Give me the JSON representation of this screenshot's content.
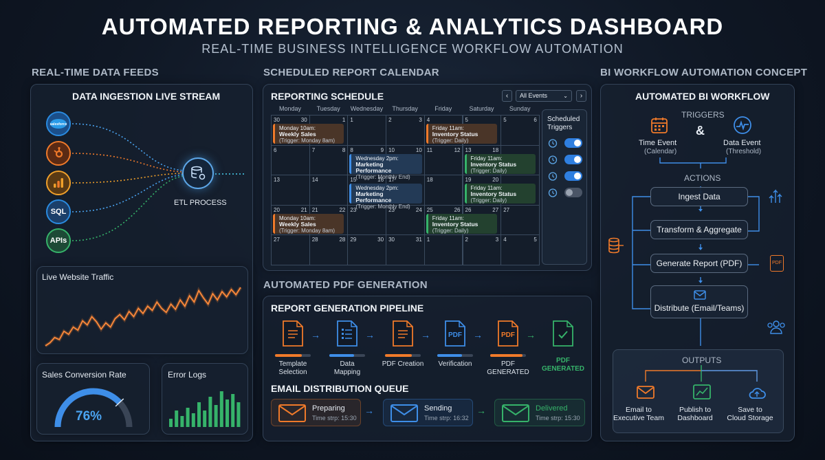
{
  "header": {
    "title": "AUTOMATED REPORTING & ANALYTICS DASHBOARD",
    "subtitle": "REAL-TIME BUSINESS INTELLIGENCE WORKFLOW AUTOMATION"
  },
  "sections": {
    "feeds": "REAL-TIME DATA FEEDS",
    "calendar": "SCHEDULED REPORT CALENDAR",
    "workflow": "BI WORKFLOW AUTOMATION CONCEPT",
    "pdf": "AUTOMATED PDF GENERATION"
  },
  "ingestion": {
    "title": "DATA INGESTION LIVE STREAM",
    "sources": [
      "salesforce",
      "hubspot",
      "analytics",
      "SQL",
      "APIs"
    ],
    "etl_label": "ETL PROCESS",
    "colors": [
      "#2a8be0",
      "#f07a2a",
      "#f0a02a",
      "#2a8be0",
      "#36b36a"
    ]
  },
  "traffic": {
    "title": "Live Website Traffic",
    "values": [
      22,
      25,
      30,
      28,
      36,
      33,
      40,
      37,
      46,
      42,
      50,
      45,
      38,
      44,
      40,
      48,
      52,
      47,
      55,
      50,
      58,
      53,
      60,
      56,
      64,
      58,
      54,
      62,
      57,
      66,
      60,
      70,
      64,
      75,
      68,
      62,
      72,
      66,
      74,
      69,
      76,
      71,
      78
    ]
  },
  "conversion": {
    "title": "Sales Conversion Rate",
    "value": "76%",
    "fraction": 0.76
  },
  "errors": {
    "title": "Error Logs",
    "bars": [
      3,
      6,
      4,
      7,
      5,
      9,
      6,
      11,
      8,
      13,
      10,
      12,
      9
    ]
  },
  "calendar": {
    "title": "REPORTING SCHEDULE",
    "filter": "All Events",
    "prev_icon": "chevron-left-icon",
    "next_icon": "chevron-right-icon",
    "days": [
      "Monday",
      "Tuesday",
      "Wednesday",
      "Thursday",
      "Friday",
      "Saturday",
      "Sunday"
    ],
    "weeks": [
      [
        [
          "30",
          "30"
        ],
        [
          "",
          "1"
        ],
        [
          "1",
          ""
        ],
        [
          "2",
          "3"
        ],
        [
          "4",
          ""
        ],
        [
          "5",
          ""
        ],
        [
          "5",
          "6"
        ]
      ],
      [
        [
          "6",
          ""
        ],
        [
          "7",
          "8"
        ],
        [
          "8",
          "9"
        ],
        [
          "10",
          "10"
        ],
        [
          "11",
          "12"
        ],
        [
          "13",
          "18"
        ],
        [
          "",
          ""
        ]
      ],
      [
        [
          "13",
          ""
        ],
        [
          "14",
          ""
        ],
        [
          "15",
          "16"
        ],
        [
          "17",
          ""
        ],
        [
          "18",
          ""
        ],
        [
          "19",
          "20"
        ],
        [
          "",
          ""
        ]
      ],
      [
        [
          "20",
          "21"
        ],
        [
          "21",
          "22"
        ],
        [
          "23",
          ""
        ],
        [
          "23",
          "24"
        ],
        [
          "25",
          "26"
        ],
        [
          "26",
          "27"
        ],
        [
          "27",
          ""
        ]
      ],
      [
        [
          "27",
          ""
        ],
        [
          "28",
          "28"
        ],
        [
          "29",
          "30"
        ],
        [
          "30",
          "31"
        ],
        [
          "1",
          ""
        ],
        [
          "2",
          "3"
        ],
        [
          "4",
          "5"
        ]
      ]
    ],
    "events": [
      {
        "col": 0,
        "row": 0,
        "color": "orange",
        "time": "Monday 10am:",
        "name": "Weekly Sales",
        "trigger": "(Trigger: Monday 8am)"
      },
      {
        "col": 4,
        "row": 0,
        "color": "orange",
        "time": "Friday 11am:",
        "name": "Inventory Status",
        "trigger": "(Trigger: Daily)"
      },
      {
        "col": 2,
        "row": 1,
        "color": "blue",
        "time": "Wednesday 2pm:",
        "name": "Marketing Performance",
        "trigger": "(Trigger: Monthly End)"
      },
      {
        "col": 5,
        "row": 1,
        "color": "green",
        "time": "Friday 11am:",
        "name": "Inventory Status",
        "trigger": "(Trigger: Daily)"
      },
      {
        "col": 2,
        "row": 2,
        "color": "blue",
        "time": "Wednesday 2pm:",
        "name": "Marketing Performance",
        "trigger": "(Trigger: Monthly End)"
      },
      {
        "col": 5,
        "row": 2,
        "color": "green",
        "time": "Friday 11am:",
        "name": "Inventory Status",
        "trigger": "(Trigger: Daily)"
      },
      {
        "col": 0,
        "row": 3,
        "color": "orange",
        "time": "Monday 10am:",
        "name": "Weekly Sales",
        "trigger": "(Trigger: Monday 8am)"
      },
      {
        "col": 4,
        "row": 3,
        "color": "green",
        "time": "Friday 11am:",
        "name": "Inventory Status",
        "trigger": "(Trigger: Daily)"
      }
    ],
    "triggers_title": "Scheduled Triggers",
    "triggers": [
      {
        "icon": "alarm-icon",
        "on": true
      },
      {
        "icon": "clock-icon",
        "on": true
      },
      {
        "icon": "timer-icon",
        "on": true
      },
      {
        "icon": "robot-icon",
        "on": false
      }
    ]
  },
  "pipeline": {
    "title": "REPORT GENERATION PIPELINE",
    "steps": [
      {
        "label": "Template\nSelection",
        "icon": "document-icon",
        "color": "#f07a2a",
        "progress": 0.75
      },
      {
        "label": "Data\nMapping",
        "icon": "checklist-icon",
        "color": "#3e8ee8",
        "progress": 0.7
      },
      {
        "label": "PDF Creation",
        "icon": "document-icon",
        "color": "#f07a2a",
        "progress": 0.75
      },
      {
        "label": "Verification",
        "icon": "pdf-icon",
        "color": "#3e8ee8",
        "progress": 0.7
      },
      {
        "label": "PDF\nGENERATED",
        "icon": "pdf-icon",
        "color": "#f07a2a",
        "progress": 0.9
      },
      {
        "label": "PDF\nGENERATED",
        "icon": "check-document-icon",
        "color": "#36b36a",
        "progress": null
      }
    ],
    "pdf_text": "PDF"
  },
  "email": {
    "title": "EMAIL DISTRIBUTION QUEUE",
    "items": [
      {
        "status": "Preparing",
        "time": "Time strp: 15:30",
        "color": "#f07a2a"
      },
      {
        "status": "Sending",
        "time": "Time strp: 16:32",
        "color": "#3e8ee8"
      },
      {
        "status": "Delivered",
        "time": "Time strp: 15:30",
        "color": "#36b36a"
      }
    ]
  },
  "workflow": {
    "title": "AUTOMATED BI WORKFLOW",
    "triggers_label": "TRIGGERS",
    "amp": "&",
    "time_event": "Time Event",
    "time_sub": "(Calendar)",
    "data_event": "Data Event",
    "data_sub": "(Threshold)",
    "actions_label": "ACTIONS",
    "actions": [
      "Ingest Data",
      "Transform & Aggregate",
      "Generate Report (PDF)",
      "Distribute (Email/Teams)"
    ],
    "pdf_badge": "PDF",
    "outputs_label": "OUTPUTS",
    "outputs": [
      {
        "line1": "Email to",
        "line2": "Executive Team",
        "icon": "mail-icon",
        "color": "#f07a2a"
      },
      {
        "line1": "Publish to",
        "line2": "Dashboard",
        "icon": "dashboard-icon",
        "color": "#36b36a"
      },
      {
        "line1": "Save to",
        "line2": "Cloud Storage",
        "icon": "cloud-icon",
        "color": "#3e8ee8"
      }
    ]
  }
}
